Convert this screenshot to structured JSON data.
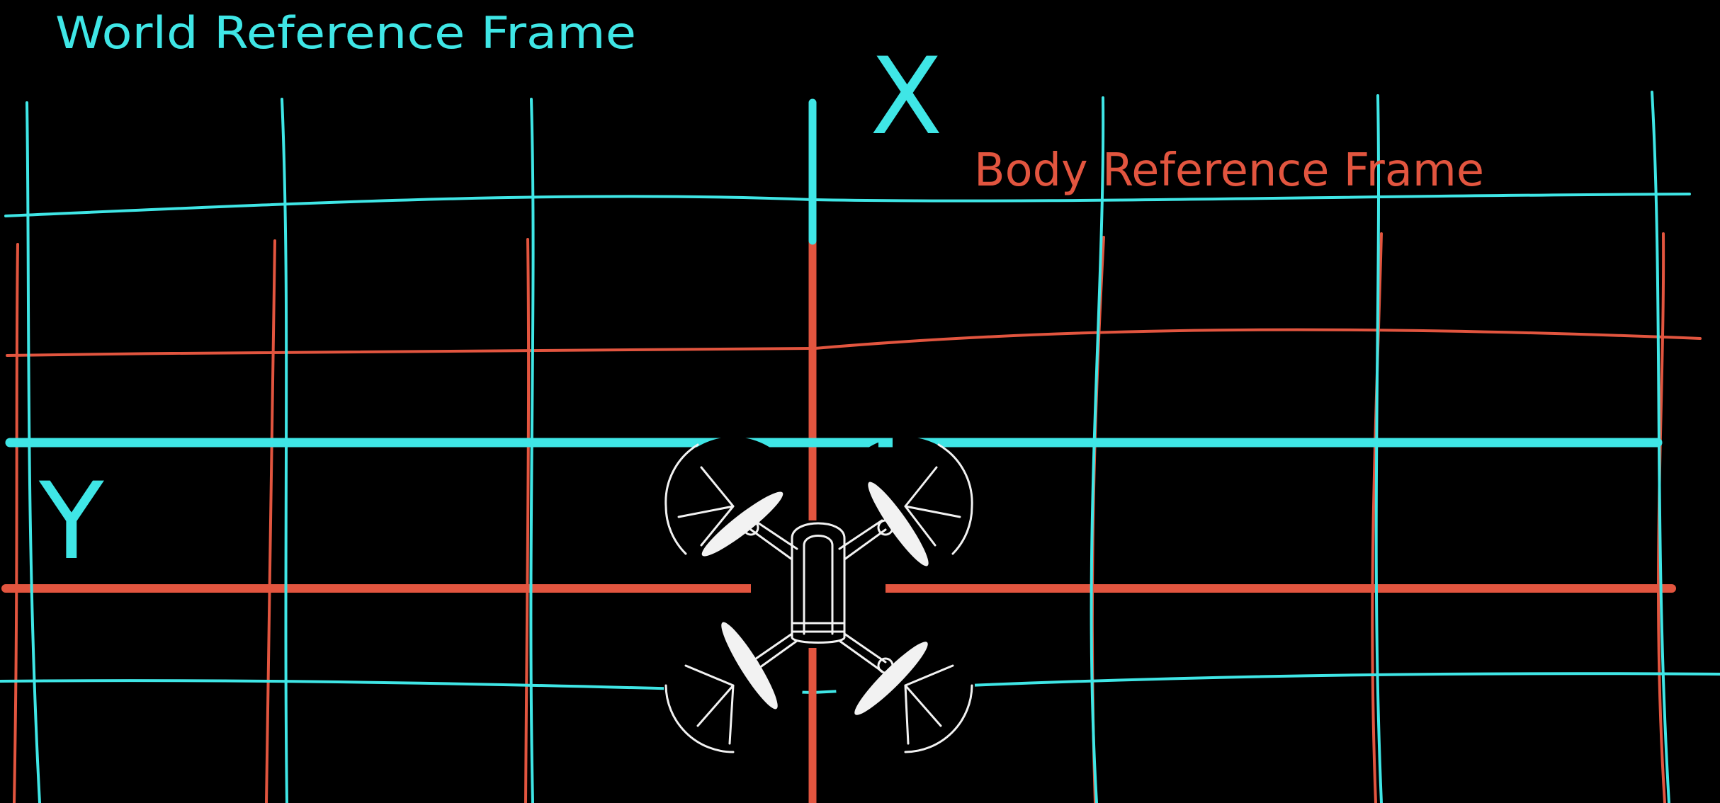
{
  "labels": {
    "world_frame": "World Reference Frame",
    "body_frame": "Body Reference Frame",
    "x_axis": "X",
    "y_axis": "Y"
  },
  "colors": {
    "background": "#000000",
    "world": "#3fe6e6",
    "body": "#e2553f",
    "drone": "#f2f2f2"
  },
  "icons": {
    "vehicle": "quadcopter-drone-icon"
  }
}
